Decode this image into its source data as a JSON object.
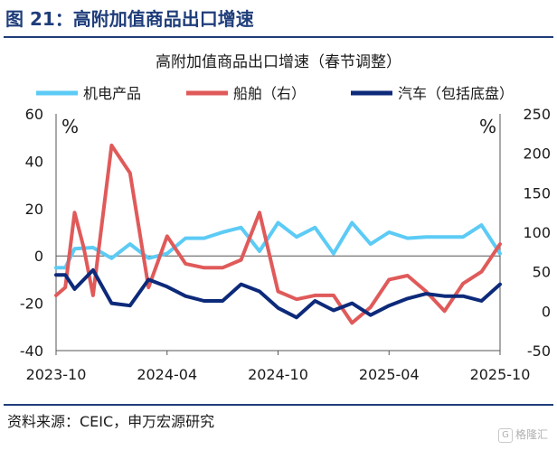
{
  "figure_title": "图 21：高附加值商品出口增速",
  "source": "资料来源：CEIC，申万宏源研究",
  "watermark": "格隆汇",
  "watermark_icon": "G",
  "chart_data": {
    "type": "line",
    "title": "高附加值商品出口增速（春节调整）",
    "left_unit": "%",
    "right_unit": "%",
    "ylim_left": [
      -40,
      60
    ],
    "yticks_left": [
      -40,
      -20,
      0,
      20,
      40,
      60
    ],
    "ylim_right": [
      -50,
      250
    ],
    "yticks_right": [
      -50,
      0,
      50,
      100,
      150,
      200,
      250
    ],
    "x_tick_labels": [
      "2023-10",
      "2024-04",
      "2024-10",
      "2025-04",
      "2025-10"
    ],
    "x_tick_index": [
      0,
      6,
      12,
      18,
      24
    ],
    "zero_line": true,
    "legend_position": "top",
    "series": [
      {
        "name": "机电产品",
        "axis": "left",
        "color": "#5ccbf5",
        "x": [
          0,
          0.5,
          1,
          2,
          3,
          4,
          5,
          6,
          7,
          8,
          9,
          10,
          11,
          12,
          13,
          14,
          15,
          16,
          17,
          18,
          19,
          20,
          21,
          22,
          23,
          24
        ],
        "values": [
          -5,
          -5,
          3,
          3.5,
          -1,
          5,
          -1,
          1,
          7.5,
          7.5,
          10,
          12,
          2,
          14,
          8,
          12,
          1,
          14,
          5,
          10,
          7.5,
          8,
          8,
          8,
          13,
          1
        ]
      },
      {
        "name": "船舶（右）",
        "axis": "right",
        "color": "#e05a5a",
        "x": [
          0,
          0.5,
          1,
          1.5,
          2,
          3,
          4,
          5,
          6,
          7,
          8,
          9,
          10,
          11,
          12,
          13,
          14,
          15,
          16,
          17,
          18,
          19,
          20,
          21,
          22,
          23,
          24
        ],
        "values": [
          20,
          30,
          125,
          80,
          20,
          210,
          175,
          30,
          95,
          60,
          55,
          55,
          65,
          125,
          25,
          15,
          20,
          20,
          -15,
          5,
          40,
          45,
          25,
          0,
          35,
          50,
          85
        ]
      },
      {
        "name": "汽车（包括底盘）",
        "axis": "left",
        "color": "#0d2a7a",
        "x": [
          0,
          0.5,
          1,
          2,
          3,
          4,
          5,
          6,
          7,
          8,
          9,
          10,
          11,
          12,
          13,
          14,
          15,
          16,
          17,
          18,
          19,
          20,
          21,
          22,
          23,
          24
        ],
        "values": [
          -8,
          -8,
          -14,
          -6,
          -20,
          -21,
          -10,
          -13,
          -17,
          -19,
          -19,
          -12,
          -15,
          -22,
          -26,
          -19,
          -23,
          -20,
          -25,
          -21,
          -18,
          -16,
          -17,
          -17,
          -19,
          -12
        ]
      }
    ]
  }
}
